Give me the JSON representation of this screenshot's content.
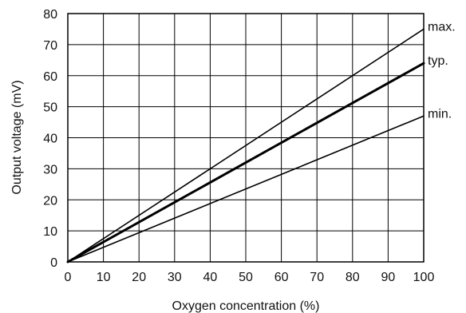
{
  "chart_data": {
    "type": "line",
    "xlabel": "Oxygen concentration (%)",
    "ylabel": "Output voltage (mV)",
    "xlim": [
      0,
      100
    ],
    "ylim": [
      0,
      80
    ],
    "x_ticks": [
      0,
      10,
      20,
      30,
      40,
      50,
      60,
      70,
      80,
      90,
      100
    ],
    "y_ticks": [
      0,
      10,
      20,
      30,
      40,
      50,
      60,
      70,
      80
    ],
    "grid": true,
    "legend": "none",
    "line_color": "#000000",
    "series": [
      {
        "name": "max.",
        "x": [
          0,
          100
        ],
        "y": [
          0,
          75
        ],
        "emphasis": false
      },
      {
        "name": "typ.",
        "x": [
          0,
          100
        ],
        "y": [
          0,
          64
        ],
        "emphasis": true
      },
      {
        "name": "min.",
        "x": [
          0,
          100
        ],
        "y": [
          0,
          47
        ],
        "emphasis": false
      }
    ]
  }
}
